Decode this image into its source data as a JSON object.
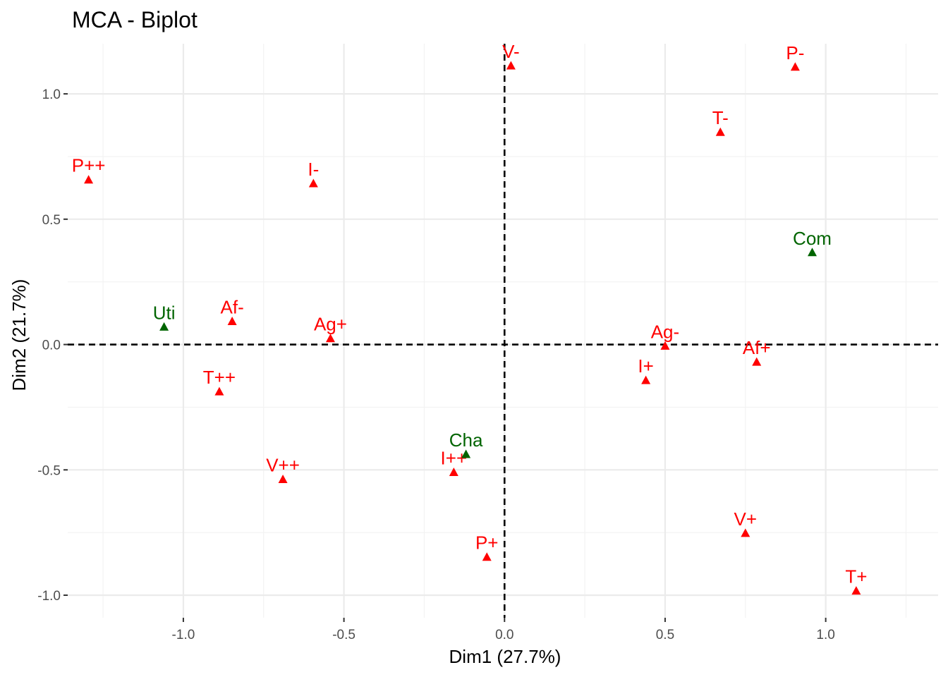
{
  "chart_data": {
    "type": "scatter",
    "title": "MCA - Biplot",
    "xlabel": "Dim1 (27.7%)",
    "ylabel": "Dim2 (21.7%)",
    "xlim": [
      -1.36,
      1.35
    ],
    "ylim": [
      -1.09,
      1.2
    ],
    "x_ticks": [
      -1.0,
      -0.5,
      0.0,
      0.5,
      1.0
    ],
    "x_tick_labels": [
      "-1.0",
      "-0.5",
      "0.0",
      "0.5",
      "1.0"
    ],
    "y_ticks": [
      -1.0,
      -0.5,
      0.0,
      0.5,
      1.0
    ],
    "y_tick_labels": [
      "-1.0",
      "-0.5",
      "0.0",
      "0.5",
      "1.0"
    ],
    "grid": true,
    "reference_lines": {
      "x": 0,
      "y": 0
    },
    "series": [
      {
        "color": "#ff0000",
        "points": [
          {
            "label": "V-",
            "x": 0.02,
            "y": 1.11
          },
          {
            "label": "P-",
            "x": 0.905,
            "y": 1.105
          },
          {
            "label": "T-",
            "x": 0.672,
            "y": 0.845
          },
          {
            "label": "P++",
            "x": -1.295,
            "y": 0.655
          },
          {
            "label": "I-",
            "x": -0.595,
            "y": 0.64
          },
          {
            "label": "Af-",
            "x": -0.848,
            "y": 0.09
          },
          {
            "label": "Ag+",
            "x": -0.542,
            "y": 0.022
          },
          {
            "label": "Ag-",
            "x": 0.5,
            "y": -0.008
          },
          {
            "label": "Af+",
            "x": 0.785,
            "y": -0.072
          },
          {
            "label": "I+",
            "x": 0.44,
            "y": -0.145
          },
          {
            "label": "T++",
            "x": -0.888,
            "y": -0.19
          },
          {
            "label": "I++",
            "x": -0.158,
            "y": -0.512
          },
          {
            "label": "V++",
            "x": -0.69,
            "y": -0.54
          },
          {
            "label": "V+",
            "x": 0.75,
            "y": -0.755
          },
          {
            "label": "P+",
            "x": -0.055,
            "y": -0.85
          },
          {
            "label": "T+",
            "x": 1.095,
            "y": -0.985
          }
        ]
      },
      {
        "color": "#006400",
        "points": [
          {
            "label": "Com",
            "x": 0.958,
            "y": 0.365
          },
          {
            "label": "Uti",
            "x": -1.06,
            "y": 0.068
          },
          {
            "label": "Cha",
            "x": -0.12,
            "y": -0.44
          }
        ]
      }
    ]
  }
}
